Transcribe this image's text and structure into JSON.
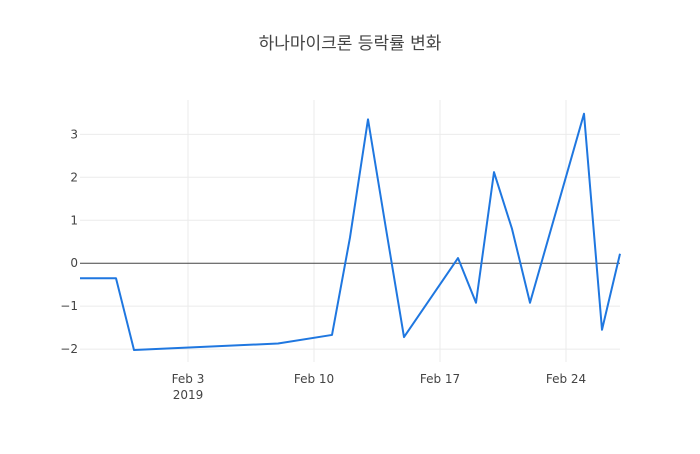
{
  "chart_data": {
    "type": "line",
    "title": "하나마이크론 등락률 변화",
    "xlabel": "",
    "ylabel": "",
    "x_axis": {
      "type": "date",
      "range": [
        "2019-01-28",
        "2019-02-27"
      ],
      "ticks": [
        {
          "date": "2019-02-03",
          "label": "Feb 3",
          "sublabel": "2019"
        },
        {
          "date": "2019-02-10",
          "label": "Feb 10",
          "sublabel": ""
        },
        {
          "date": "2019-02-17",
          "label": "Feb 17",
          "sublabel": ""
        },
        {
          "date": "2019-02-24",
          "label": "Feb 24",
          "sublabel": ""
        }
      ]
    },
    "y_axis": {
      "range": [
        -2.3,
        3.8
      ],
      "ticks": [
        {
          "value": -2,
          "label": "−2"
        },
        {
          "value": -1,
          "label": "−1"
        },
        {
          "value": 0,
          "label": "0"
        },
        {
          "value": 1,
          "label": "1"
        },
        {
          "value": 2,
          "label": "2"
        },
        {
          "value": 3,
          "label": "3"
        }
      ]
    },
    "grid": true,
    "zero_line": true,
    "line_color": "#1f77e0",
    "series": [
      {
        "x": [
          "2019-01-28",
          "2019-01-30",
          "2019-01-31",
          "2019-02-08",
          "2019-02-11",
          "2019-02-12",
          "2019-02-13",
          "2019-02-14",
          "2019-02-15",
          "2019-02-18",
          "2019-02-19",
          "2019-02-20",
          "2019-02-21",
          "2019-02-22",
          "2019-02-25",
          "2019-02-26",
          "2019-02-27"
        ],
        "y": [
          -0.35,
          -0.35,
          -2.02,
          -1.87,
          -1.67,
          0.6,
          3.35,
          0.8,
          -1.72,
          0.12,
          -0.92,
          2.12,
          0.8,
          -0.92,
          3.48,
          -1.55,
          0.22
        ]
      }
    ]
  }
}
